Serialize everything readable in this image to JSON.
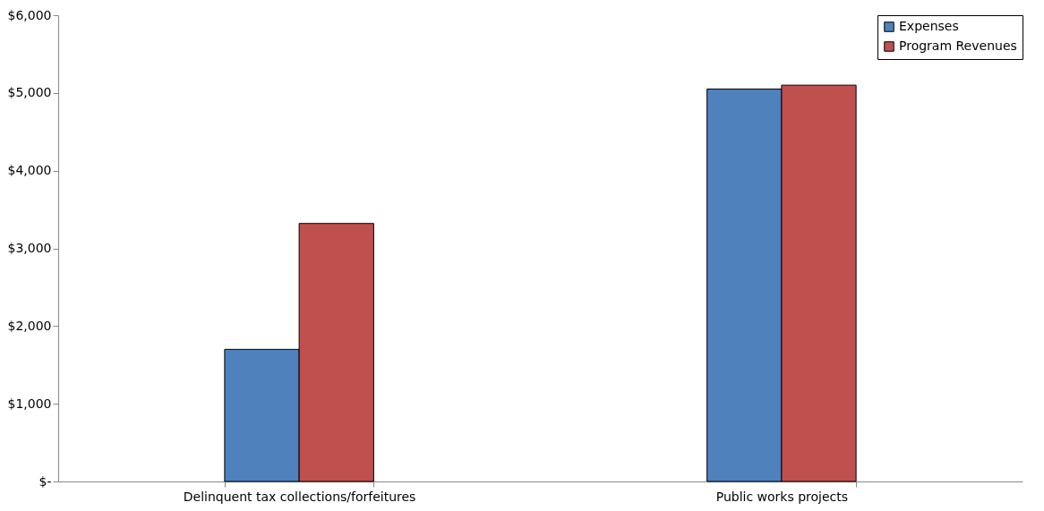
{
  "chart_data": {
    "type": "bar",
    "categories": [
      "Delinquent tax collections/forfeitures",
      "Public works projects"
    ],
    "series": [
      {
        "name": "Expenses",
        "color": "#4f81bd",
        "values": [
          1700,
          5050
        ]
      },
      {
        "name": "Program Revenues",
        "color": "#c0504d",
        "values": [
          3320,
          5100
        ]
      }
    ],
    "ylim": [
      0,
      6000
    ],
    "yticks": [
      {
        "value": 0,
        "label": "$-"
      },
      {
        "value": 1000,
        "label": "$1,000"
      },
      {
        "value": 2000,
        "label": "$2,000"
      },
      {
        "value": 3000,
        "label": "$3,000"
      },
      {
        "value": 4000,
        "label": "$4,000"
      },
      {
        "value": 5000,
        "label": "$5,000"
      },
      {
        "value": 6000,
        "label": "$6,000"
      }
    ],
    "grid": false,
    "legend": "top right"
  }
}
